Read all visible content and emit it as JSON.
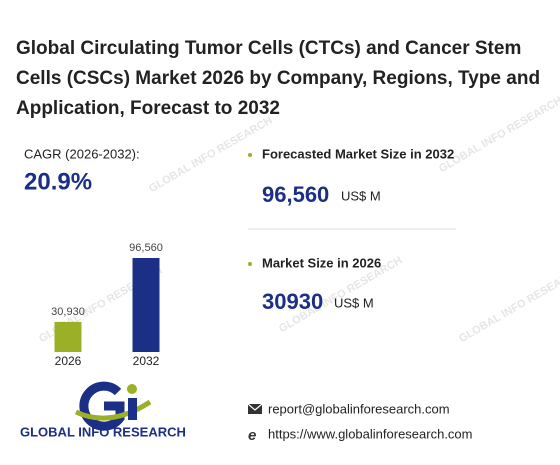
{
  "title": "Global Circulating Tumor Cells (CTCs) and Cancer Stem Cells (CSCs) Market 2026 by Company, Regions, Type and Application, Forecast to 2032",
  "cagr": {
    "label": "CAGR (2026-2032):",
    "value": "20.9%"
  },
  "forecast": {
    "label": "Forecasted Market Size in 2032",
    "value": "96,560",
    "unit": "US$ M"
  },
  "market_size": {
    "label": "Market Size in 2026",
    "value": "30930",
    "unit": "US$ M"
  },
  "chart_data": {
    "type": "bar",
    "categories": [
      "2026",
      "2032"
    ],
    "values": [
      30930,
      96560
    ],
    "value_labels": [
      "30,930",
      "96,560"
    ],
    "colors": [
      "#9bb026",
      "#1b2f86"
    ]
  },
  "brand": "GLOBAL INFO RESEARCH",
  "contact": {
    "email": "report@globalinforesearch.com",
    "website": "https://www.globalinforesearch.com"
  }
}
